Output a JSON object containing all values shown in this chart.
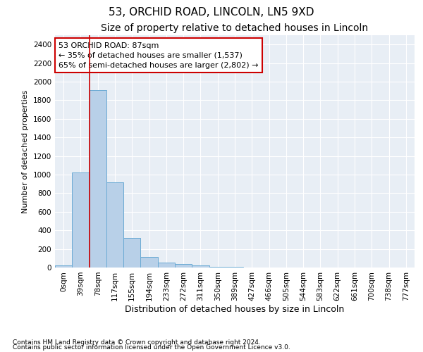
{
  "title": "53, ORCHID ROAD, LINCOLN, LN5 9XD",
  "subtitle": "Size of property relative to detached houses in Lincoln",
  "xlabel": "Distribution of detached houses by size in Lincoln",
  "ylabel": "Number of detached properties",
  "footnote1": "Contains HM Land Registry data © Crown copyright and database right 2024.",
  "footnote2": "Contains public sector information licensed under the Open Government Licence v3.0.",
  "annotation_title": "53 ORCHID ROAD: 87sqm",
  "annotation_line1": "← 35% of detached houses are smaller (1,537)",
  "annotation_line2": "65% of semi-detached houses are larger (2,802) →",
  "bar_labels": [
    "0sqm",
    "39sqm",
    "78sqm",
    "117sqm",
    "155sqm",
    "194sqm",
    "233sqm",
    "272sqm",
    "311sqm",
    "350sqm",
    "389sqm",
    "427sqm",
    "466sqm",
    "505sqm",
    "544sqm",
    "583sqm",
    "622sqm",
    "661sqm",
    "700sqm",
    "738sqm",
    "777sqm"
  ],
  "bar_values": [
    20,
    1020,
    1910,
    920,
    320,
    110,
    55,
    35,
    20,
    5,
    5,
    0,
    0,
    0,
    0,
    0,
    0,
    0,
    0,
    0,
    0
  ],
  "bar_color": "#b8d0e8",
  "bar_edge_color": "#6aaad4",
  "vline_color": "#cc0000",
  "vline_x_index": 2,
  "annotation_box_color": "#cc0000",
  "background_color": "#e8eef5",
  "grid_color": "#ffffff",
  "ylim": [
    0,
    2500
  ],
  "yticks": [
    0,
    200,
    400,
    600,
    800,
    1000,
    1200,
    1400,
    1600,
    1800,
    2000,
    2200,
    2400
  ],
  "title_fontsize": 11,
  "subtitle_fontsize": 10,
  "xlabel_fontsize": 9,
  "ylabel_fontsize": 8,
  "tick_fontsize": 7.5,
  "annotation_fontsize": 8,
  "footnote_fontsize": 6.5
}
